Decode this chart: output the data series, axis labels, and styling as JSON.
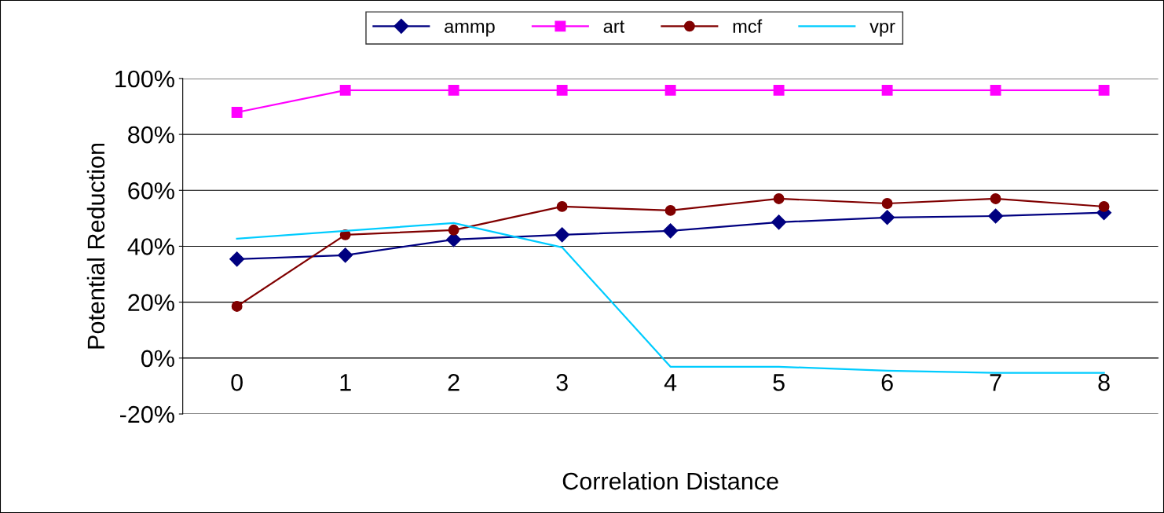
{
  "chart_data": {
    "type": "line",
    "xlabel": "Correlation Distance",
    "ylabel": "Potential Reduction",
    "categories": [
      "0",
      "1",
      "2",
      "3",
      "4",
      "5",
      "6",
      "7",
      "8"
    ],
    "series": [
      {
        "name": "ammp",
        "color": "#000080",
        "marker": "diamond",
        "values": [
          35.4,
          36.8,
          42.4,
          44.1,
          45.5,
          48.6,
          50.3,
          50.8,
          52
        ]
      },
      {
        "name": "art",
        "color": "#ff00ff",
        "marker": "square",
        "values": [
          87.9,
          95.8,
          95.8,
          95.8,
          95.8,
          95.8,
          95.8,
          95.8,
          95.8
        ]
      },
      {
        "name": "mcf",
        "color": "#800000",
        "marker": "circle",
        "values": [
          18.5,
          44.1,
          45.8,
          54.2,
          52.8,
          57,
          55.3,
          57,
          54.2
        ]
      },
      {
        "name": "vpr",
        "color": "#00ccff",
        "marker": "none",
        "values": [
          42.7,
          45.5,
          48.3,
          39.6,
          -3.1,
          -3.1,
          -4.5,
          -5.3,
          -5.3
        ]
      }
    ],
    "ylim": [
      -20,
      100
    ],
    "yticks": [
      {
        "value": -20,
        "label": "-20%"
      },
      {
        "value": 0,
        "label": "0%"
      },
      {
        "value": 20,
        "label": "20%"
      },
      {
        "value": 40,
        "label": "40%"
      },
      {
        "value": 60,
        "label": "60%"
      },
      {
        "value": 80,
        "label": "80%"
      },
      {
        "value": 100,
        "label": "100%"
      }
    ],
    "grid": "y",
    "legend": "top",
    "line_style": "solid"
  }
}
